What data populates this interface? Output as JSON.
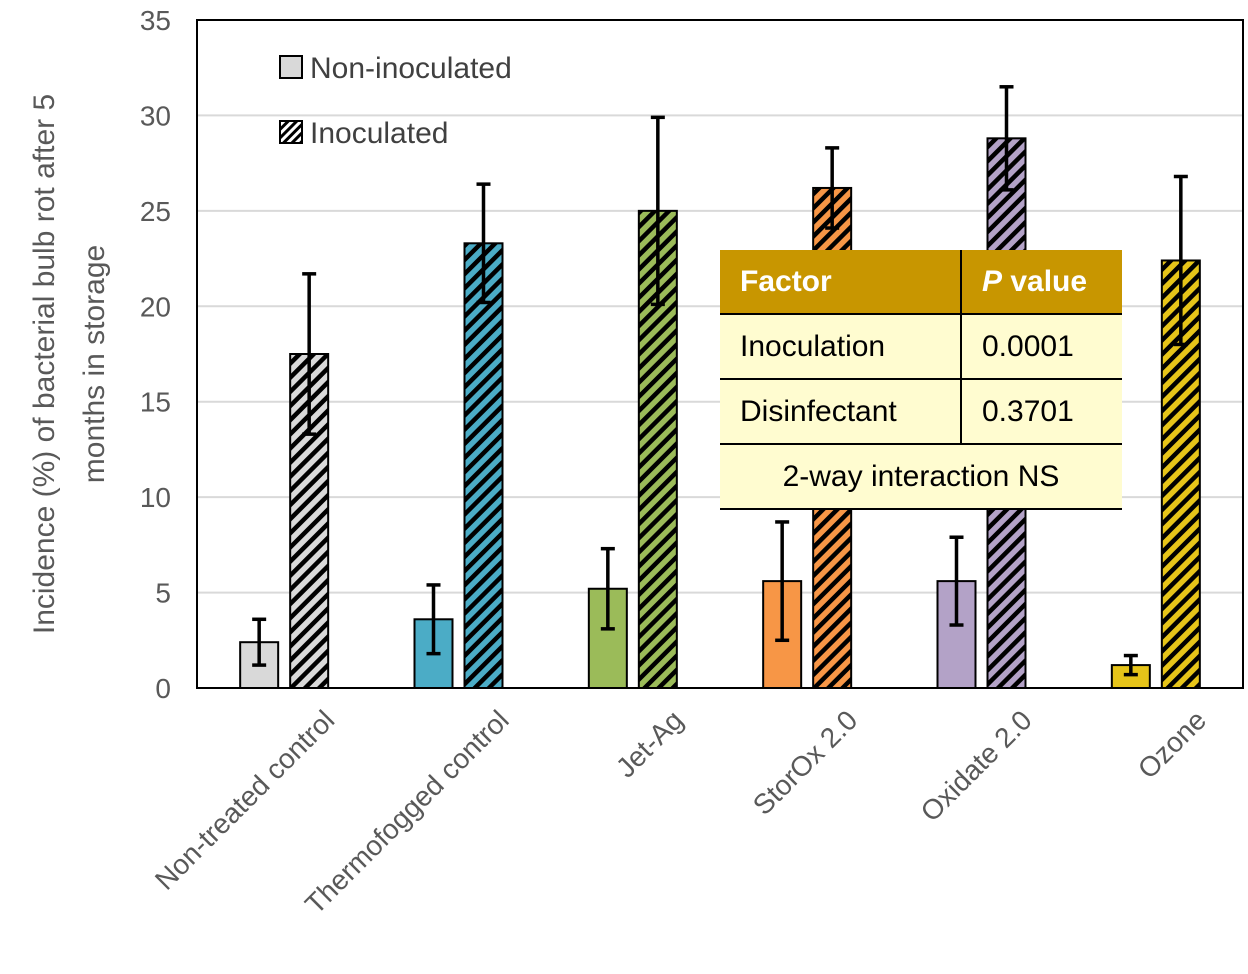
{
  "chart_data": {
    "type": "bar",
    "title": "",
    "xlabel": "",
    "ylabel_lines": [
      "Incidence (%) of bacterial bulb rot after 5",
      "months in storage"
    ],
    "ylim": [
      0,
      35
    ],
    "yticks": [
      0,
      5,
      10,
      15,
      20,
      25,
      30,
      35
    ],
    "grid": true,
    "legend_position": "top-left",
    "categories": [
      "Non-treated control",
      "Thermofogged control",
      "Jet-Ag",
      "StorOx 2.0",
      "Oxidate 2.0",
      "Ozone"
    ],
    "category_colors": [
      "#d9d9d9",
      "#4bacc6",
      "#9bbb59",
      "#f79646",
      "#b3a2c7",
      "#e6c419"
    ],
    "series": [
      {
        "name": "Non-inoculated",
        "pattern": "solid",
        "values": [
          2.4,
          3.6,
          5.2,
          5.6,
          5.6,
          1.2
        ],
        "errors": [
          1.2,
          1.8,
          2.1,
          3.1,
          2.3,
          0.5
        ]
      },
      {
        "name": "Inoculated",
        "pattern": "diagonal-hatch",
        "values": [
          17.5,
          23.3,
          25.0,
          26.2,
          28.8,
          22.4
        ],
        "errors": [
          4.2,
          3.1,
          4.9,
          2.1,
          2.7,
          4.4
        ]
      }
    ]
  },
  "stats_table": {
    "header": {
      "factor": "Factor",
      "p_italic": "P",
      "p_rest": " value"
    },
    "rows": [
      {
        "factor": "Inoculation",
        "p": "0.0001"
      },
      {
        "factor": "Disinfectant",
        "p": "0.3701"
      }
    ],
    "footer": "2-way interaction NS"
  },
  "colors": {
    "header_bg": "#c89600",
    "table_bg": "#fffcd0",
    "grid": "#d9d9d9",
    "axis": "#000000"
  }
}
